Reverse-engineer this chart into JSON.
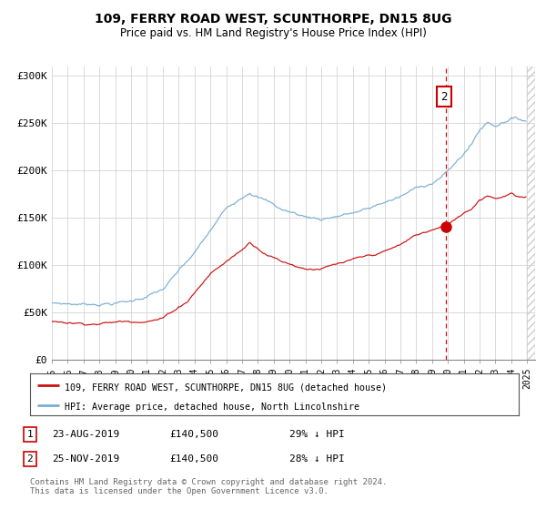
{
  "title": "109, FERRY ROAD WEST, SCUNTHORPE, DN15 8UG",
  "subtitle": "Price paid vs. HM Land Registry's House Price Index (HPI)",
  "legend_line1": "109, FERRY ROAD WEST, SCUNTHORPE, DN15 8UG (detached house)",
  "legend_line2": "HPI: Average price, detached house, North Lincolnshire",
  "table_rows": [
    {
      "num": "1",
      "date": "23-AUG-2019",
      "price": "£140,500",
      "pct": "29% ↓ HPI"
    },
    {
      "num": "2",
      "date": "25-NOV-2019",
      "price": "£140,500",
      "pct": "28% ↓ HPI"
    }
  ],
  "footer": "Contains HM Land Registry data © Crown copyright and database right 2024.\nThis data is licensed under the Open Government Licence v3.0.",
  "hpi_color": "#7aaed4",
  "price_color": "#cc1111",
  "vline_color": "#cc1111",
  "marker_color": "#cc0000",
  "annotation_box_color": "#cc0000",
  "bg_color": "#ffffff",
  "grid_color": "#cccccc",
  "ylim": [
    0,
    310000
  ],
  "yticks": [
    0,
    50000,
    100000,
    150000,
    200000,
    250000,
    300000
  ],
  "ytick_labels": [
    "£0",
    "£50K",
    "£100K",
    "£150K",
    "£200K",
    "£250K",
    "£300K"
  ],
  "year_start": 1995,
  "year_end": 2025,
  "sale_date": 2019.896,
  "sale_price": 140500,
  "hpi_at_sale": 195000
}
